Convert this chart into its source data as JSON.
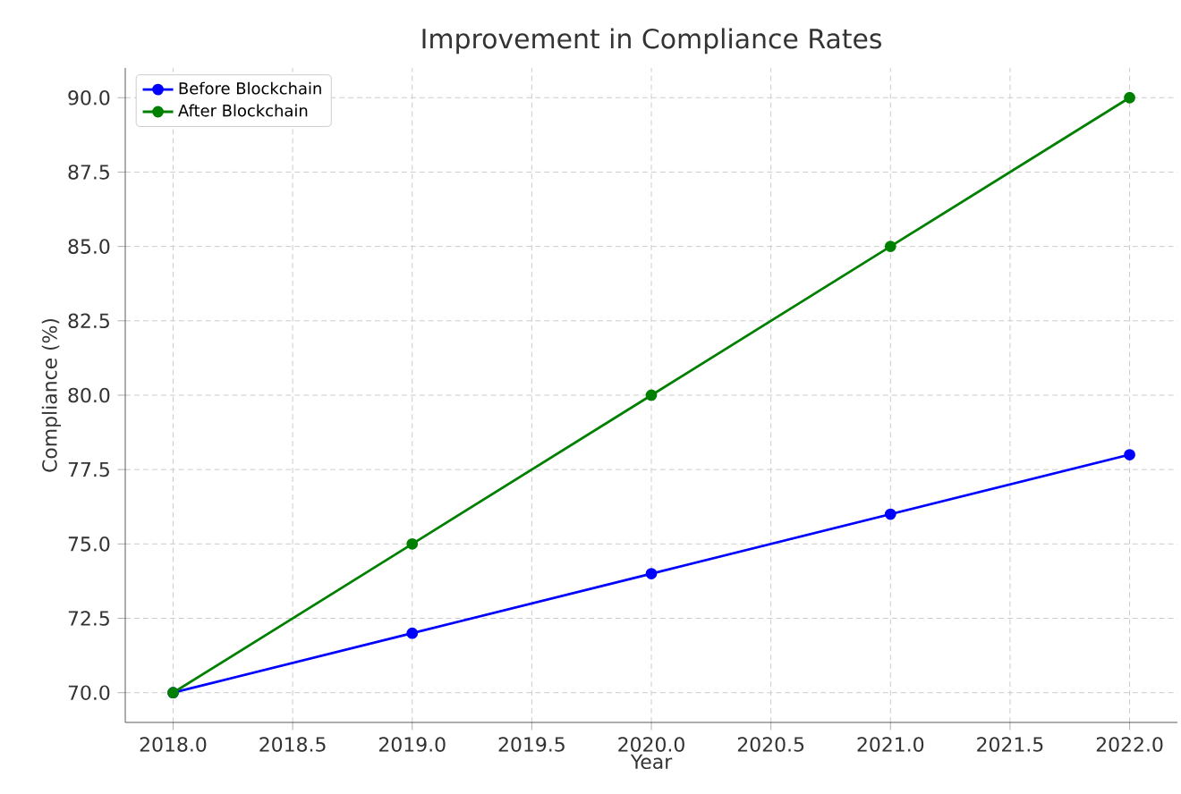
{
  "chart_data": {
    "type": "line",
    "title": "Improvement in Compliance Rates",
    "xlabel": "Year",
    "ylabel": "Compliance (%)",
    "x": [
      2018,
      2019,
      2020,
      2021,
      2022
    ],
    "series": [
      {
        "name": "Before Blockchain",
        "color": "#0000ff",
        "values": [
          70,
          72,
          74,
          76,
          78
        ]
      },
      {
        "name": "After Blockchain",
        "color": "#008000",
        "values": [
          70,
          75,
          80,
          85,
          90
        ]
      }
    ],
    "xlim": [
      2017.8,
      2022.2
    ],
    "ylim": [
      69,
      91
    ],
    "xticks": [
      {
        "value": 2018,
        "label": "2018.0"
      },
      {
        "value": 2018.5,
        "label": "2018.5"
      },
      {
        "value": 2019,
        "label": "2019.0"
      },
      {
        "value": 2019.5,
        "label": "2019.5"
      },
      {
        "value": 2020,
        "label": "2020.0"
      },
      {
        "value": 2020.5,
        "label": "2020.5"
      },
      {
        "value": 2021,
        "label": "2021.0"
      },
      {
        "value": 2021.5,
        "label": "2021.5"
      },
      {
        "value": 2022,
        "label": "2022.0"
      }
    ],
    "yticks": [
      {
        "value": 70,
        "label": "70.0"
      },
      {
        "value": 72.5,
        "label": "72.5"
      },
      {
        "value": 75,
        "label": "75.0"
      },
      {
        "value": 77.5,
        "label": "77.5"
      },
      {
        "value": 80,
        "label": "80.0"
      },
      {
        "value": 82.5,
        "label": "82.5"
      },
      {
        "value": 85,
        "label": "85.0"
      },
      {
        "value": 87.5,
        "label": "87.5"
      },
      {
        "value": 90,
        "label": "90.0"
      }
    ],
    "grid": true,
    "legend": "top left",
    "marker": "circle",
    "line_style": "solid"
  }
}
